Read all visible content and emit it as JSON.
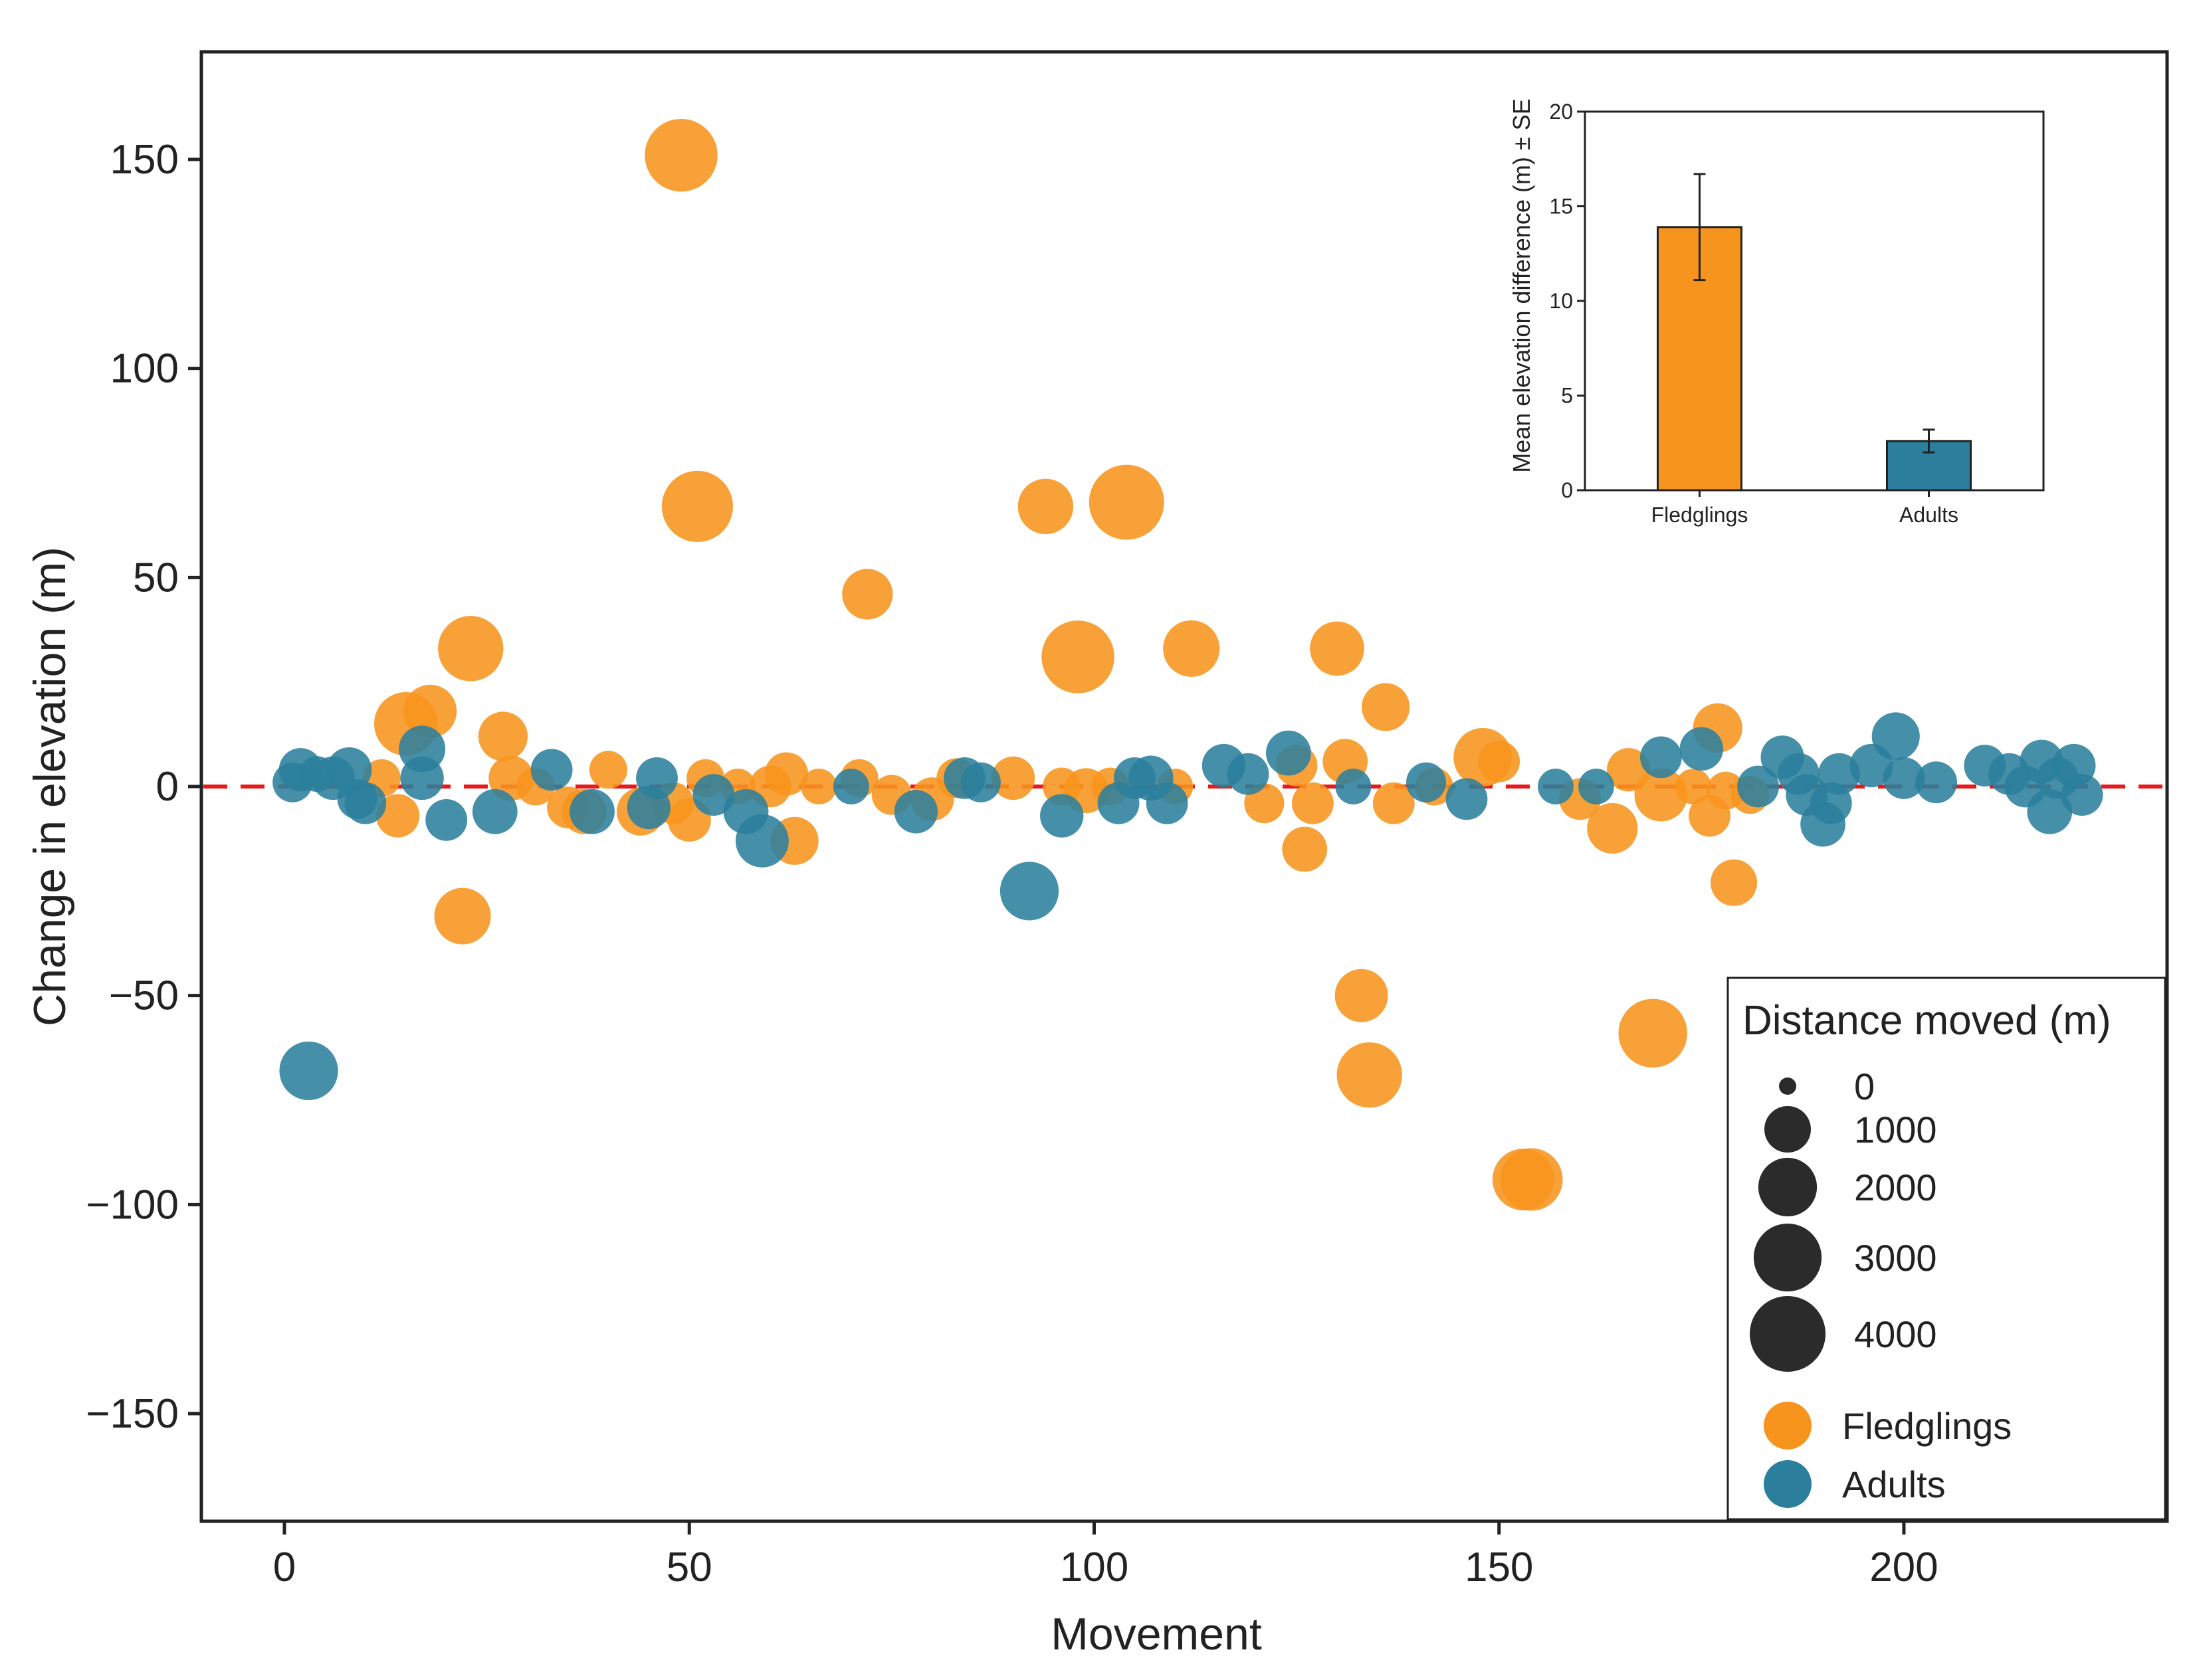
{
  "chart_data": [
    {
      "type": "scatter",
      "title": "",
      "xlabel": "Movement",
      "ylabel": "Change in elevation (m)",
      "xlim": [
        -10,
        234
      ],
      "ylim": [
        -175,
        175
      ],
      "xticks": [
        0,
        50,
        100,
        150,
        200
      ],
      "yticks": [
        150,
        100,
        50,
        0,
        -50,
        -100,
        -150
      ],
      "x_tick_labels": [
        "0",
        "50",
        "100",
        "150",
        "200"
      ],
      "y_tick_labels": [
        "150",
        "100",
        "50",
        "0",
        "−50",
        "−100",
        "−150"
      ],
      "grid": false,
      "reference_line": {
        "y": 0,
        "style": "dashed",
        "color": "#e41a1c"
      },
      "series": [
        {
          "name": "Fledglings",
          "color": "#f7941d",
          "points": [
            [
              49,
              151,
              3600
            ],
            [
              51,
              67,
              3400
            ],
            [
              104,
              68,
              3900
            ],
            [
              94,
              67,
              1700
            ],
            [
              72,
              46,
              1300
            ],
            [
              23,
              33,
              2700
            ],
            [
              98,
              31,
              3600
            ],
            [
              112,
              33,
              1800
            ],
            [
              130,
              33,
              1600
            ],
            [
              15,
              15,
              2500
            ],
            [
              18,
              18,
              1500
            ],
            [
              27,
              12,
              1200
            ],
            [
              136,
              19,
              1100
            ],
            [
              148,
              7,
              2000
            ],
            [
              177,
              14,
              1200
            ],
            [
              12,
              2,
              500
            ],
            [
              14,
              -7,
              800
            ],
            [
              22,
              -31,
              1800
            ],
            [
              28,
              2,
              900
            ],
            [
              31,
              0,
              500
            ],
            [
              35,
              -5,
              700
            ],
            [
              37,
              -6,
              900
            ],
            [
              40,
              4,
              500
            ],
            [
              44,
              -6,
              1100
            ],
            [
              48,
              -4,
              700
            ],
            [
              50,
              -8,
              800
            ],
            [
              52,
              2,
              500
            ],
            [
              56,
              0,
              400
            ],
            [
              60,
              0,
              700
            ],
            [
              62,
              3,
              800
            ],
            [
              63,
              -13,
              1100
            ],
            [
              66,
              0,
              400
            ],
            [
              71,
              2,
              500
            ],
            [
              75,
              -2,
              600
            ],
            [
              80,
              -3,
              800
            ],
            [
              83,
              2,
              600
            ],
            [
              90,
              2,
              800
            ],
            [
              96,
              0,
              500
            ],
            [
              99,
              -1,
              900
            ],
            [
              102,
              0,
              500
            ],
            [
              110,
              0,
              400
            ],
            [
              121,
              -4,
              600
            ],
            [
              125,
              5,
              700
            ],
            [
              126,
              -15,
              900
            ],
            [
              127,
              -4,
              700
            ],
            [
              131,
              6,
              900
            ],
            [
              133,
              -50,
              1500
            ],
            [
              134,
              -69,
              2700
            ],
            [
              137,
              -4,
              700
            ],
            [
              142,
              0,
              500
            ],
            [
              150,
              6,
              700
            ],
            [
              153,
              -94,
              2300
            ],
            [
              154,
              -94,
              2400
            ],
            [
              160,
              -3,
              700
            ],
            [
              164,
              -10,
              1300
            ],
            [
              166,
              4,
              800
            ],
            [
              169,
              -59,
              3100
            ],
            [
              170,
              -2,
              1500
            ],
            [
              174,
              0,
              400
            ],
            [
              176,
              -7,
              700
            ],
            [
              178,
              -1,
              500
            ],
            [
              179,
              -23,
              1000
            ],
            [
              181,
              -2,
              500
            ]
          ]
        },
        {
          "name": "Adults",
          "color": "#2b7f9c",
          "points": [
            [
              3,
              -68,
              2000
            ],
            [
              1,
              1,
              600
            ],
            [
              2,
              4,
              800
            ],
            [
              4,
              3,
              400
            ],
            [
              6,
              2,
              800
            ],
            [
              8,
              4,
              900
            ],
            [
              9,
              -3,
              600
            ],
            [
              10,
              -4,
              700
            ],
            [
              17,
              9,
              1000
            ],
            [
              17,
              2,
              800
            ],
            [
              20,
              -8,
              700
            ],
            [
              26,
              -6,
              900
            ],
            [
              33,
              4,
              700
            ],
            [
              38,
              -6,
              900
            ],
            [
              45,
              -5,
              800
            ],
            [
              46,
              2,
              700
            ],
            [
              53,
              -2,
              700
            ],
            [
              57,
              -6,
              900
            ],
            [
              59,
              -13,
              1500
            ],
            [
              70,
              0,
              400
            ],
            [
              78,
              -6,
              800
            ],
            [
              84,
              2,
              700
            ],
            [
              86,
              1,
              600
            ],
            [
              92,
              -25,
              2000
            ],
            [
              96,
              -7,
              800
            ],
            [
              103,
              -4,
              700
            ],
            [
              105,
              2,
              700
            ],
            [
              107,
              2,
              900
            ],
            [
              109,
              -4,
              700
            ],
            [
              116,
              5,
              800
            ],
            [
              119,
              3,
              700
            ],
            [
              124,
              8,
              900
            ],
            [
              132,
              0,
              400
            ],
            [
              141,
              1,
              600
            ],
            [
              146,
              -3,
              700
            ],
            [
              157,
              0,
              400
            ],
            [
              162,
              0,
              400
            ],
            [
              170,
              7,
              700
            ],
            [
              175,
              9,
              800
            ],
            [
              182,
              0,
              700
            ],
            [
              185,
              7,
              800
            ],
            [
              187,
              3,
              700
            ],
            [
              188,
              -2,
              700
            ],
            [
              190,
              -9,
              900
            ],
            [
              191,
              -4,
              700
            ],
            [
              192,
              3,
              700
            ],
            [
              196,
              5,
              800
            ],
            [
              199,
              12,
              1100
            ],
            [
              200,
              2,
              700
            ],
            [
              204,
              1,
              700
            ],
            [
              210,
              5,
              700
            ],
            [
              213,
              3,
              700
            ],
            [
              215,
              0,
              700
            ],
            [
              217,
              6,
              800
            ],
            [
              218,
              -6,
              900
            ],
            [
              219,
              2,
              700
            ],
            [
              221,
              5,
              800
            ],
            [
              222,
              -2,
              700
            ]
          ]
        }
      ],
      "size_legend": {
        "title": "Distance moved (m)",
        "entries": [
          {
            "label": "0",
            "value": 0
          },
          {
            "label": "1000",
            "value": 1000
          },
          {
            "label": "2000",
            "value": 2000
          },
          {
            "label": "3000",
            "value": 3000
          },
          {
            "label": "4000",
            "value": 4000
          }
        ],
        "marker_color": "#2b2b2b"
      },
      "group_legend": [
        {
          "label": "Fledglings",
          "color": "#f7941d"
        },
        {
          "label": "Adults",
          "color": "#2b7f9c"
        }
      ],
      "legend_placement": "bottom-right"
    },
    {
      "type": "bar",
      "title": "",
      "categories": [
        "Fledglings",
        "Adults"
      ],
      "values": [
        13.9,
        2.6
      ],
      "se": [
        2.8,
        0.6
      ],
      "colors": [
        "#f7941d",
        "#2b7f9c"
      ],
      "ylabel": "Mean elevation difference (m) ± SE",
      "xlabel": "",
      "ylim": [
        0,
        20
      ],
      "yticks": [
        0,
        5,
        10,
        15,
        20
      ],
      "y_tick_labels": [
        "0",
        "5",
        "10",
        "15",
        "20"
      ],
      "placement": "top-right inset"
    }
  ]
}
